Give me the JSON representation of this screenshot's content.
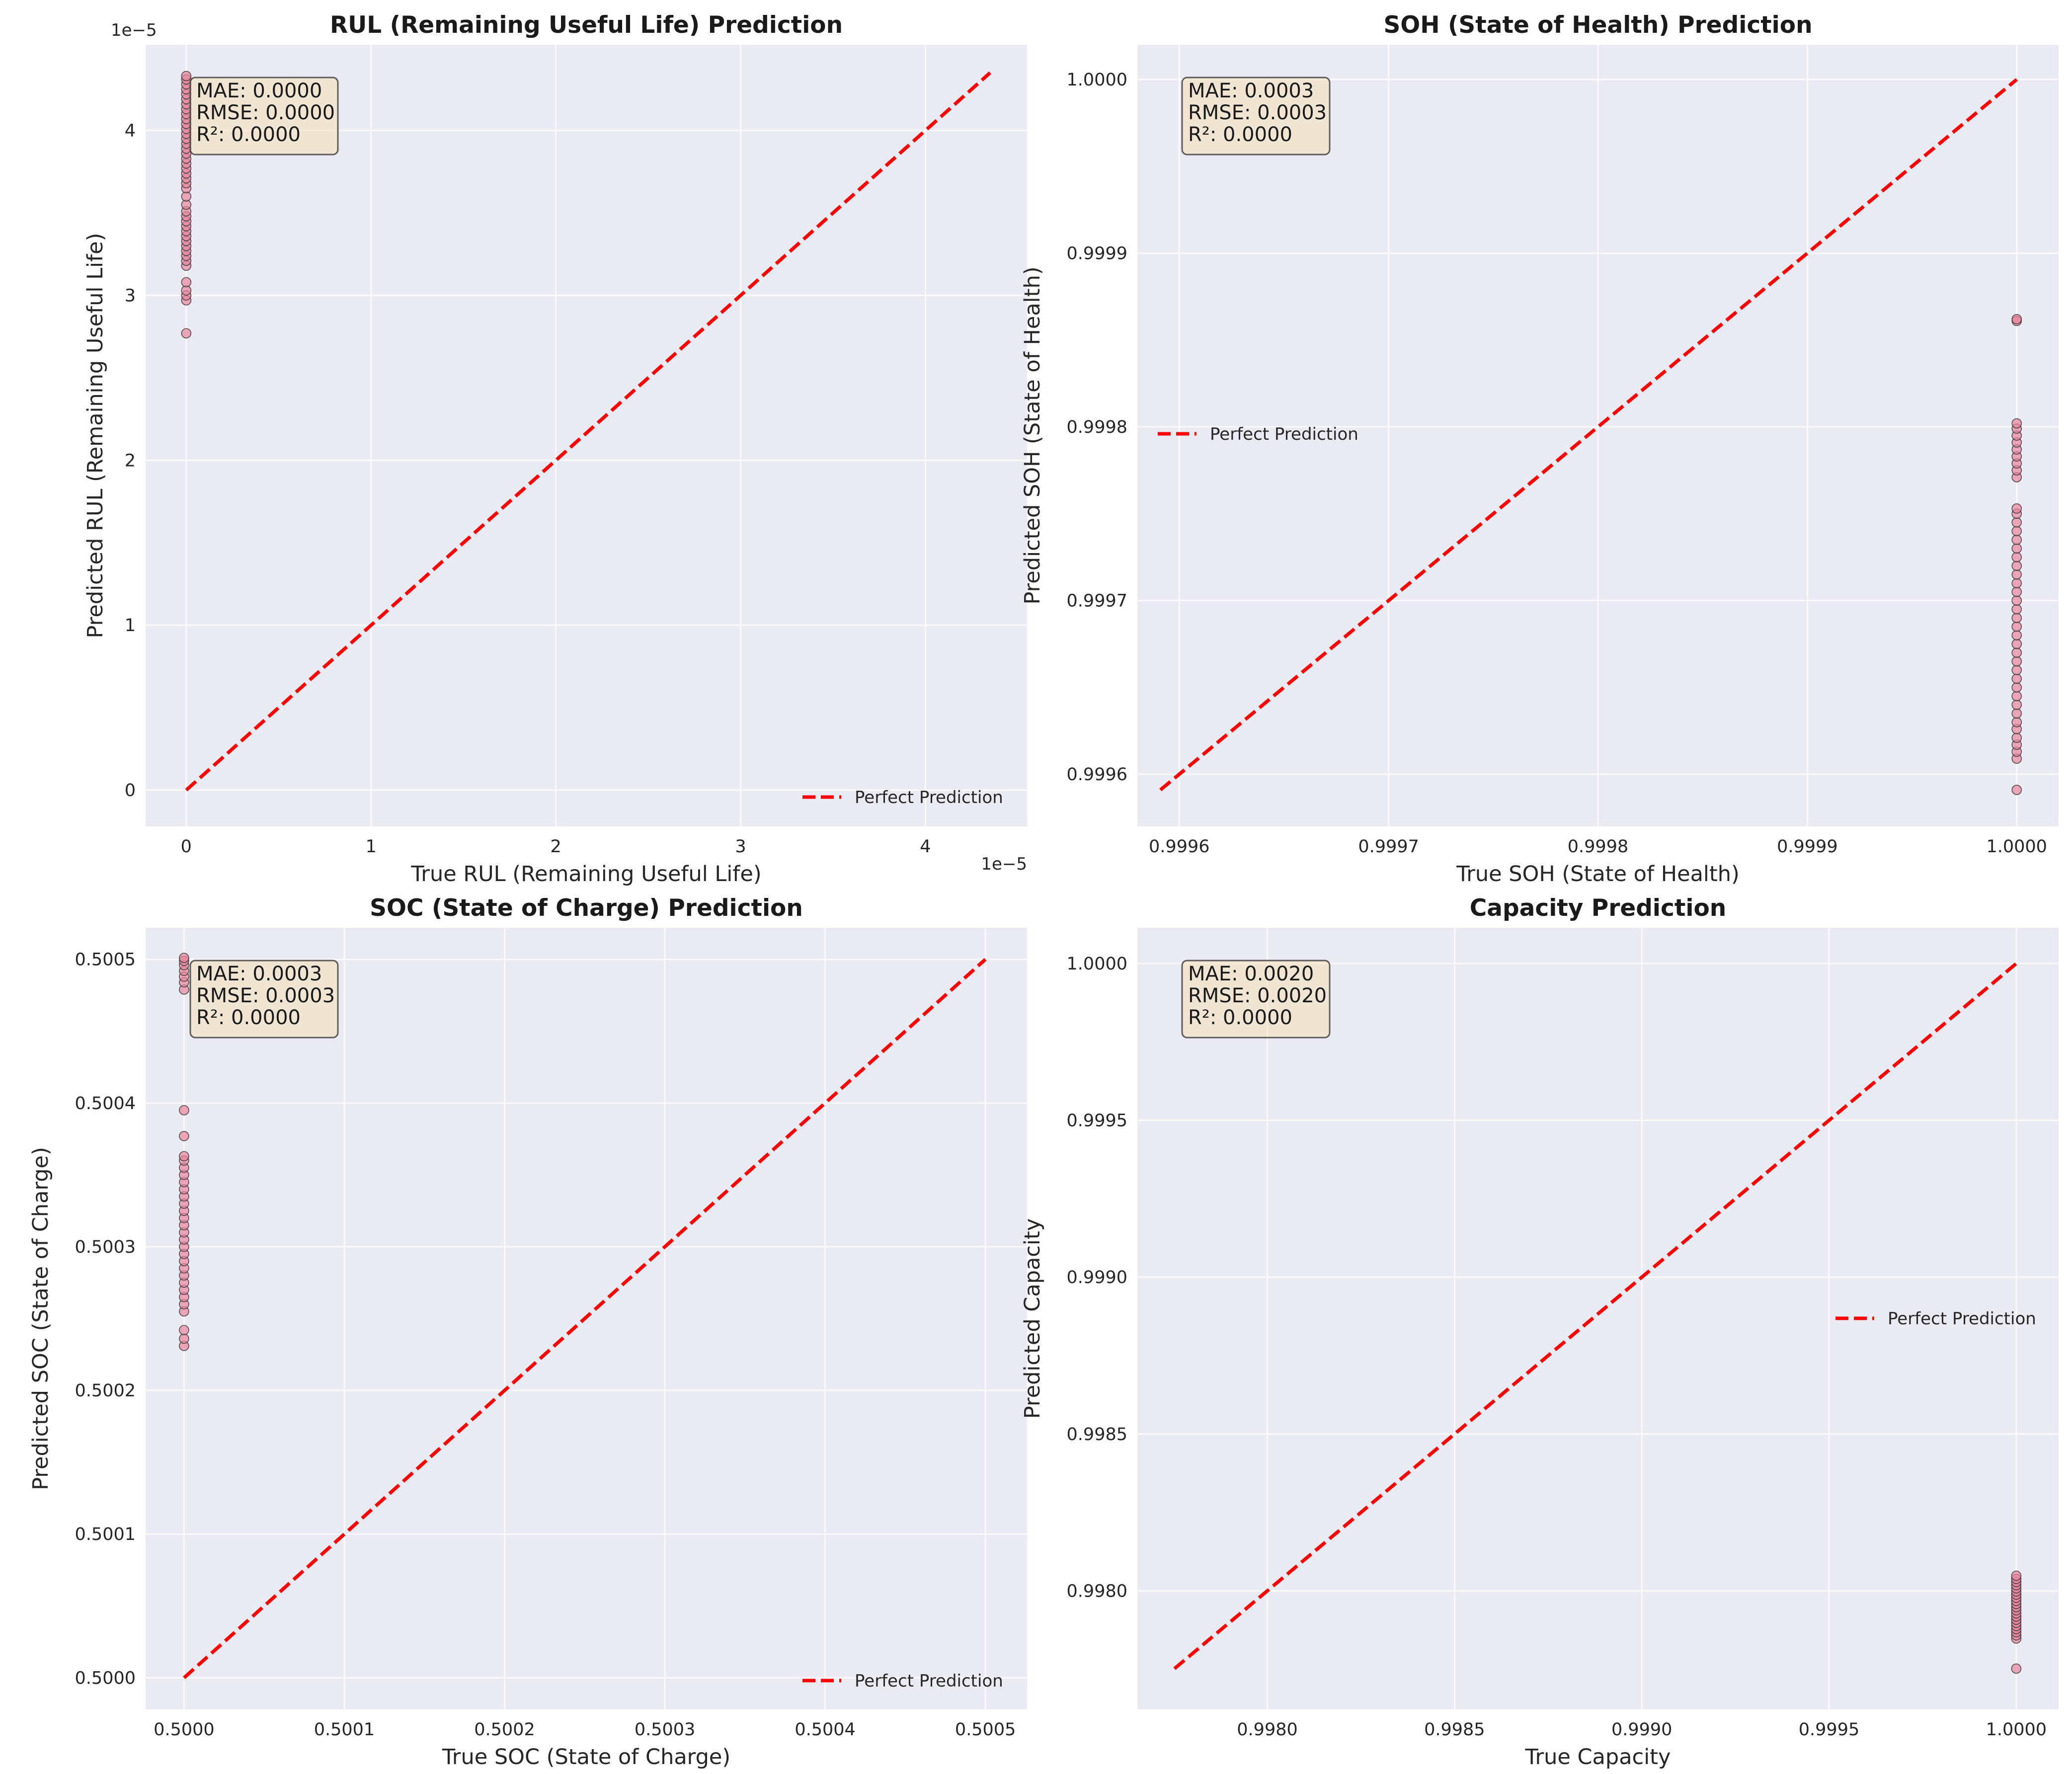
{
  "figure": {
    "background": "#ffffff",
    "axes_background": "#eaeaf2",
    "grid_color": "#ffffff",
    "point_color": "#e7849c",
    "line_color": "#ff0000"
  },
  "chart_data": [
    {
      "type": "scatter",
      "title": "RUL (Remaining Useful Life) Prediction",
      "xlabel": "True RUL (Remaining Useful Life)",
      "ylabel": "Predicted RUL (Remaining Useful Life)",
      "xlim": [
        -2.2e-06,
        4.55e-05
      ],
      "ylim": [
        -2.2e-06,
        4.52e-05
      ],
      "xticks": [
        0,
        1e-05,
        2e-05,
        3e-05,
        4e-05
      ],
      "yticks": [
        0,
        1e-05,
        2e-05,
        3e-05,
        4e-05
      ],
      "xtick_labels": [
        "0",
        "1",
        "2",
        "3",
        "4"
      ],
      "ytick_labels": [
        "0",
        "1",
        "2",
        "3",
        "4"
      ],
      "x_offset_label": "1e−5",
      "y_offset_label": "1e−5",
      "legend": {
        "label": "Perfect Prediction",
        "loc": "lower right"
      },
      "reference_line": {
        "x": [
          0,
          4.35e-05
        ],
        "y": [
          0,
          4.35e-05
        ]
      },
      "stats": [
        "MAE: 0.0000",
        "RMSE: 0.0000",
        "R²: 0.0000"
      ],
      "scatter": {
        "x_value": 0,
        "y_values": [
          2.77e-05,
          2.97e-05,
          3e-05,
          3.03e-05,
          3.08e-05,
          3.18e-05,
          3.21e-05,
          3.24e-05,
          3.27e-05,
          3.3e-05,
          3.33e-05,
          3.36e-05,
          3.39e-05,
          3.42e-05,
          3.45e-05,
          3.48e-05,
          3.51e-05,
          3.55e-05,
          3.6e-05,
          3.65e-05,
          3.68e-05,
          3.71e-05,
          3.74e-05,
          3.77e-05,
          3.8e-05,
          3.83e-05,
          3.86e-05,
          3.89e-05,
          3.92e-05,
          3.95e-05,
          3.98e-05,
          4.01e-05,
          4.04e-05,
          4.07e-05,
          4.1e-05,
          4.13e-05,
          4.16e-05,
          4.19e-05,
          4.22e-05,
          4.25e-05,
          4.28e-05,
          4.31e-05,
          4.33e-05
        ]
      }
    },
    {
      "type": "scatter",
      "title": "SOH (State of Health) Prediction",
      "xlabel": "True SOH (State of Health)",
      "ylabel": "Predicted SOH (State of Health)",
      "xlim": [
        0.99958,
        1.00002
      ],
      "ylim": [
        0.99957,
        1.00002
      ],
      "xticks": [
        0.9996,
        0.9997,
        0.9998,
        0.9999,
        1.0
      ],
      "yticks": [
        0.9996,
        0.9997,
        0.9998,
        0.9999,
        1.0
      ],
      "xtick_labels": [
        "0.9996",
        "0.9997",
        "0.9998",
        "0.9999",
        "1.0000"
      ],
      "ytick_labels": [
        "0.9996",
        "0.9997",
        "0.9998",
        "0.9999",
        "1.0000"
      ],
      "legend": {
        "label": "Perfect Prediction",
        "loc": "center left"
      },
      "reference_line": {
        "x": [
          0.999591,
          1.0
        ],
        "y": [
          0.999591,
          1.0
        ]
      },
      "stats": [
        "MAE: 0.0003",
        "RMSE: 0.0003",
        "R²: 0.0000"
      ],
      "scatter": {
        "x_value": 1.0,
        "y_values": [
          0.999591,
          0.999609,
          0.999613,
          0.999617,
          0.999621,
          0.999626,
          0.99963,
          0.999635,
          0.99964,
          0.999645,
          0.99965,
          0.999655,
          0.99966,
          0.999665,
          0.99967,
          0.999675,
          0.99968,
          0.999685,
          0.99969,
          0.999695,
          0.9997,
          0.999705,
          0.99971,
          0.999715,
          0.99972,
          0.999725,
          0.99973,
          0.999735,
          0.99974,
          0.999745,
          0.99975,
          0.999753,
          0.999771,
          0.999775,
          0.999779,
          0.999783,
          0.999787,
          0.999791,
          0.999795,
          0.999799,
          0.999802,
          0.999861,
          0.999862
        ]
      }
    },
    {
      "type": "scatter",
      "title": "SOC (State of Charge) Prediction",
      "xlabel": "True SOC (State of Charge)",
      "ylabel": "Predicted SOC (State of Charge)",
      "xlim": [
        0.499976,
        0.500526
      ],
      "ylim": [
        0.499978,
        0.500522
      ],
      "xticks": [
        0.5,
        0.5001,
        0.5002,
        0.5003,
        0.5004,
        0.5005
      ],
      "yticks": [
        0.5,
        0.5001,
        0.5002,
        0.5003,
        0.5004,
        0.5005
      ],
      "xtick_labels": [
        "0.5000",
        "0.5001",
        "0.5002",
        "0.5003",
        "0.5004",
        "0.5005"
      ],
      "ytick_labels": [
        "0.5000",
        "0.5001",
        "0.5002",
        "0.5003",
        "0.5004",
        "0.5005"
      ],
      "legend": {
        "label": "Perfect Prediction",
        "loc": "lower right"
      },
      "reference_line": {
        "x": [
          0.5,
          0.5005
        ],
        "y": [
          0.5,
          0.5005
        ]
      },
      "stats": [
        "MAE: 0.0003",
        "RMSE: 0.0003",
        "R²: 0.0000"
      ],
      "scatter": {
        "x_value": 0.5,
        "y_values": [
          0.500231,
          0.500236,
          0.500242,
          0.500255,
          0.50026,
          0.500265,
          0.50027,
          0.500275,
          0.50028,
          0.500285,
          0.50029,
          0.500295,
          0.5003,
          0.500305,
          0.50031,
          0.500315,
          0.50032,
          0.500325,
          0.50033,
          0.500335,
          0.50034,
          0.500345,
          0.50035,
          0.500355,
          0.50036,
          0.500363,
          0.500377,
          0.500395,
          0.500479,
          0.500484,
          0.500488,
          0.500492,
          0.500496,
          0.500499,
          0.500501
        ]
      }
    },
    {
      "type": "scatter",
      "title": "Capacity Prediction",
      "xlabel": "True Capacity",
      "ylabel": "Predicted Capacity",
      "xlim": [
        0.997653,
        1.000113
      ],
      "ylim": [
        0.997622,
        1.000114
      ],
      "xticks": [
        0.998,
        0.9985,
        0.999,
        0.9995,
        1.0
      ],
      "yticks": [
        0.998,
        0.9985,
        0.999,
        0.9995,
        1.0
      ],
      "xtick_labels": [
        "0.9980",
        "0.9985",
        "0.9990",
        "0.9995",
        "1.0000"
      ],
      "ytick_labels": [
        "0.9980",
        "0.9985",
        "0.9990",
        "0.9995",
        "1.0000"
      ],
      "legend": {
        "label": "Perfect Prediction",
        "loc": "center right"
      },
      "reference_line": {
        "x": [
          0.997752,
          1.0
        ],
        "y": [
          0.997752,
          1.0
        ]
      },
      "stats": [
        "MAE: 0.0020",
        "RMSE: 0.0020",
        "R²: 0.0000"
      ],
      "scatter": {
        "x_value": 1.0,
        "y_values": [
          0.997752,
          0.997848,
          0.997858,
          0.997868,
          0.997878,
          0.997888,
          0.997898,
          0.997908,
          0.997918,
          0.997928,
          0.997938,
          0.997948,
          0.997958,
          0.997968,
          0.997978,
          0.997988,
          0.997998,
          0.998008,
          0.998018,
          0.998028,
          0.998038,
          0.998048
        ]
      }
    }
  ]
}
